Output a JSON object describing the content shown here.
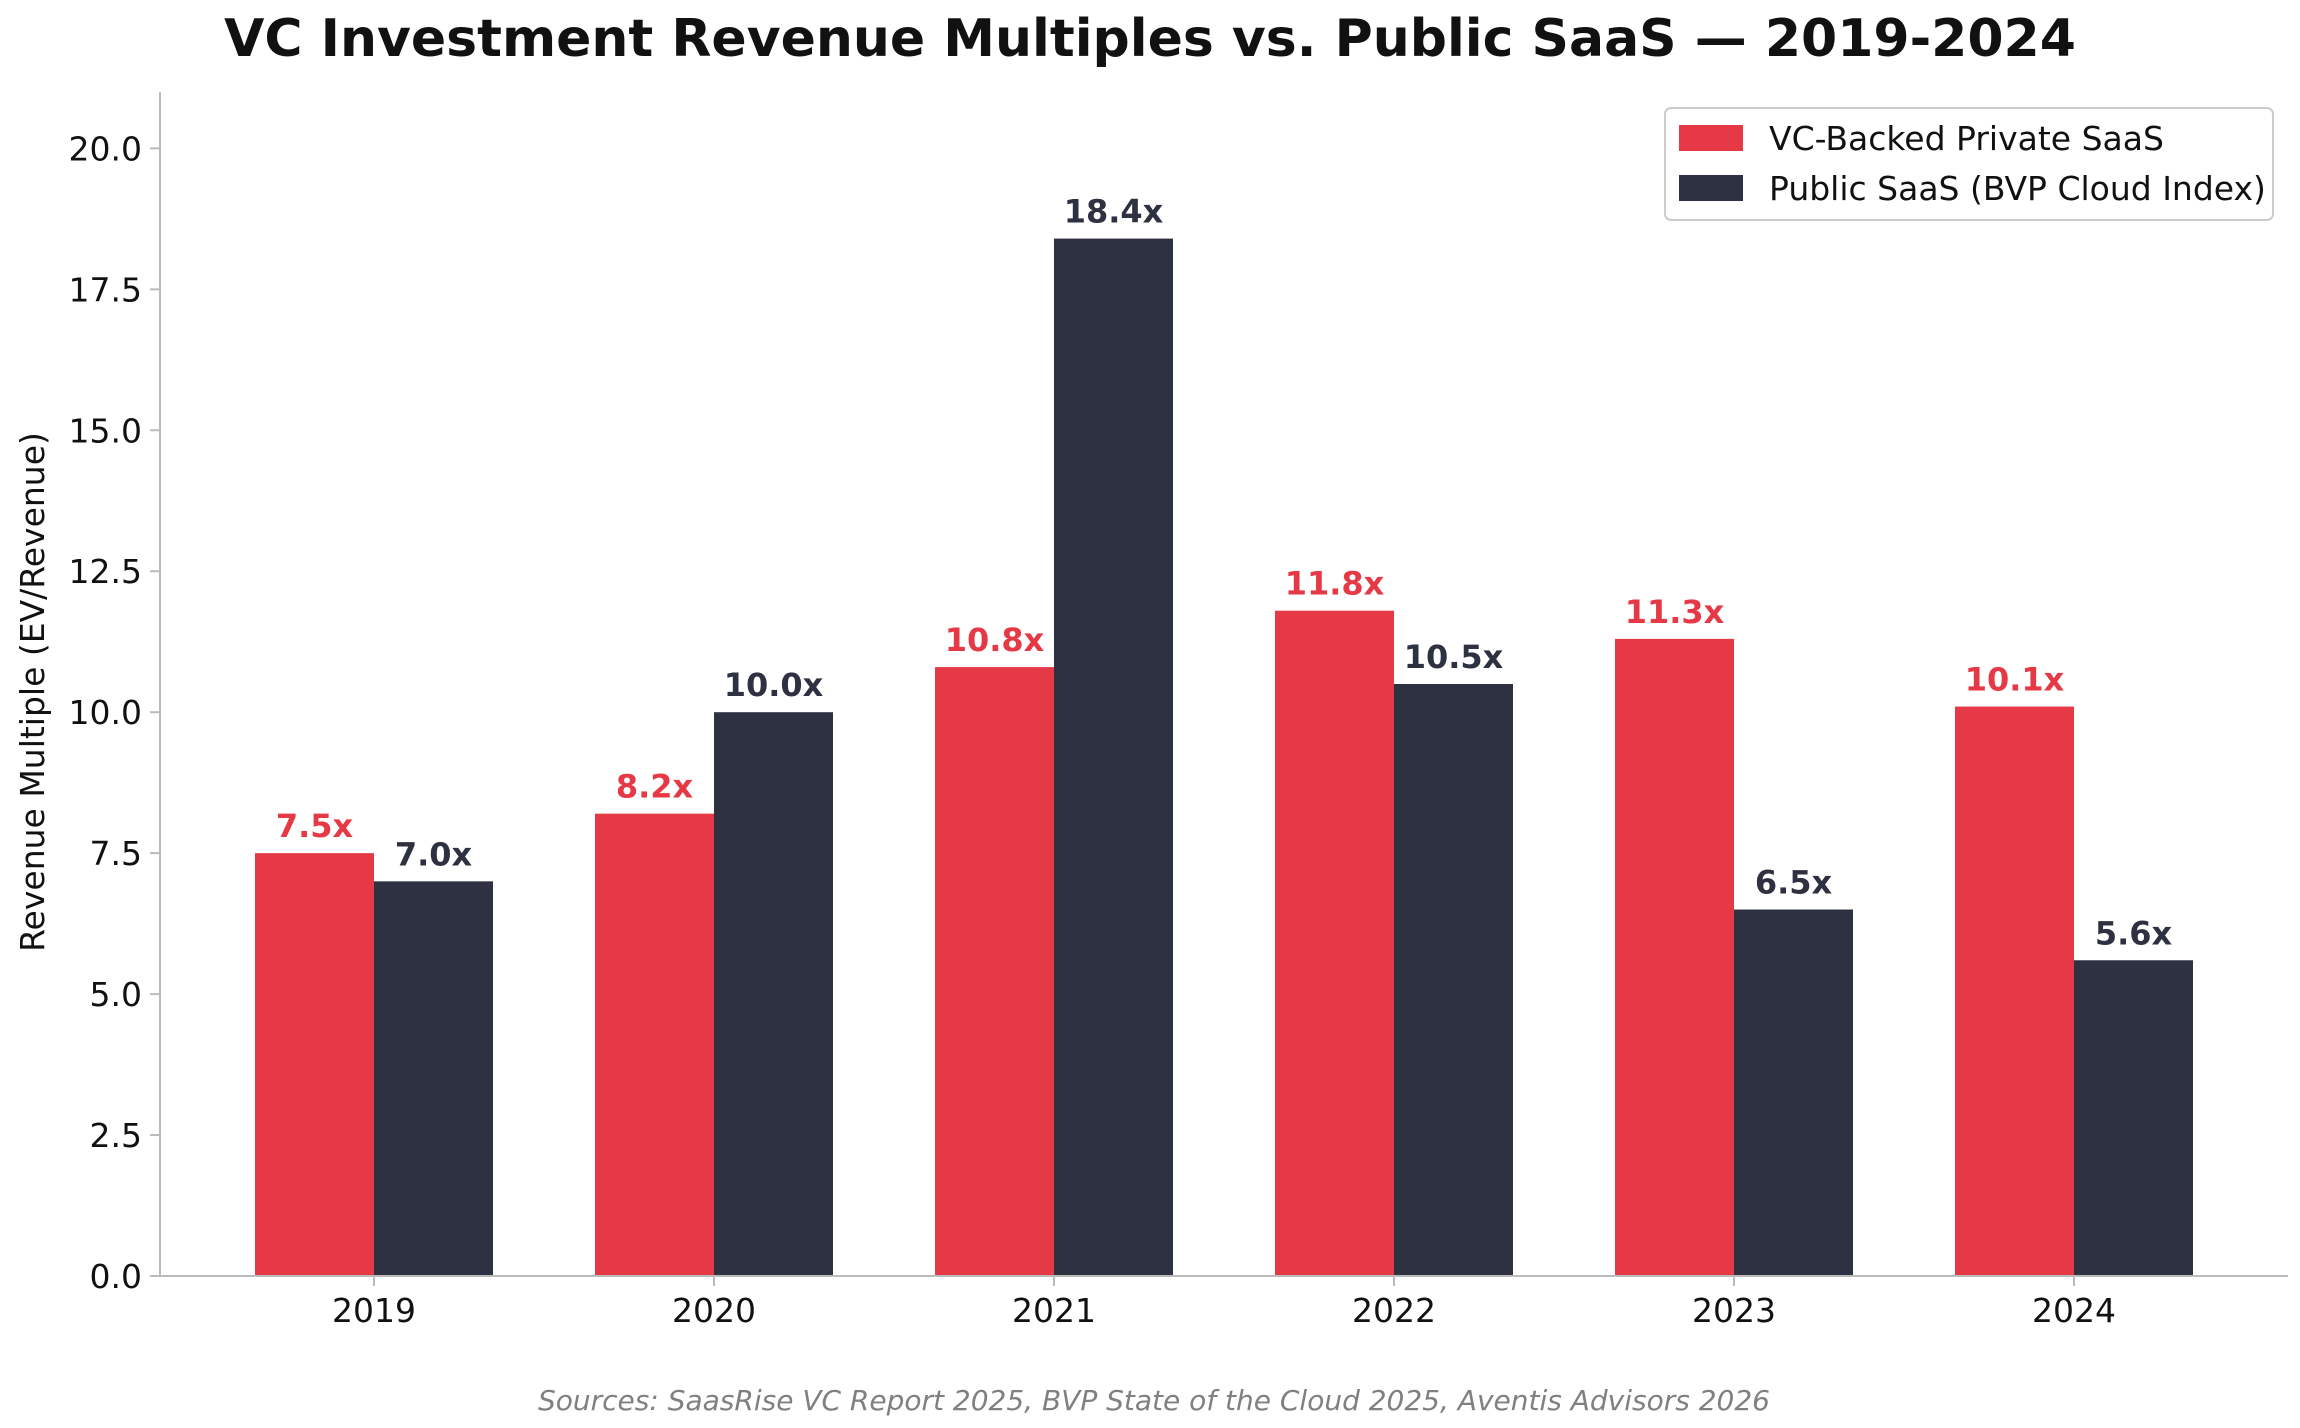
{
  "chart_data": {
    "type": "bar",
    "title": "VC Investment Revenue Multiples vs. Public SaaS — 2019-2024",
    "xlabel": "",
    "ylabel": "Revenue Multiple (EV/Revenue)",
    "categories": [
      "2019",
      "2020",
      "2021",
      "2022",
      "2023",
      "2024"
    ],
    "series": [
      {
        "name": "VC-Backed Private SaaS",
        "color": "#E63946",
        "values": [
          7.5,
          8.2,
          10.8,
          11.8,
          11.3,
          10.1
        ],
        "labels": [
          "7.5x",
          "8.2x",
          "10.8x",
          "11.8x",
          "11.3x",
          "10.1x"
        ]
      },
      {
        "name": "Public SaaS (BVP Cloud Index)",
        "color": "#2E3141",
        "values": [
          7.0,
          10.0,
          18.4,
          10.5,
          6.5,
          5.6
        ],
        "labels": [
          "7.0x",
          "10.0x",
          "18.4x",
          "10.5x",
          "6.5x",
          "5.6x"
        ]
      }
    ],
    "ylim": [
      0,
      21
    ],
    "yticks": [
      "0.0",
      "2.5",
      "5.0",
      "7.5",
      "10.0",
      "12.5",
      "15.0",
      "17.5",
      "20.0"
    ],
    "grid": false,
    "legend_position": "top-right",
    "source_note": "Sources: SaasRise VC Report 2025, BVP State of the Cloud 2025, Aventis Advisors 2026"
  }
}
